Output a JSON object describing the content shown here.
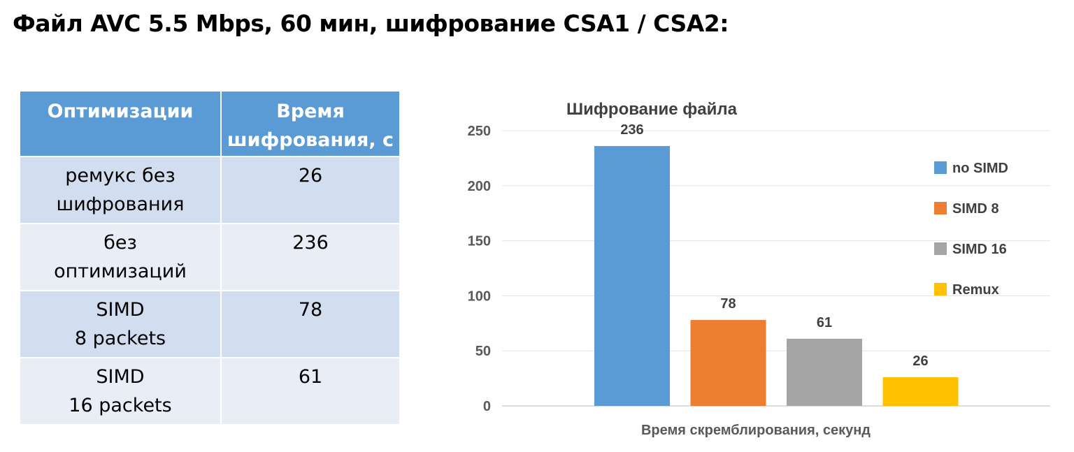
{
  "page": {
    "title": "Файл AVC 5.5 Mbps, 60 мин, шифрование CSA1 / CSA2:"
  },
  "table": {
    "headers": [
      {
        "lines": [
          "Оптимизации"
        ]
      },
      {
        "lines": [
          "Время",
          "шифрования, с"
        ]
      }
    ],
    "rows": [
      {
        "name_lines": [
          "ремукс без",
          "шифрования"
        ],
        "time": "26"
      },
      {
        "name_lines": [
          "без",
          "оптимизаций"
        ],
        "time": "236"
      },
      {
        "name_lines": [
          "SIMD",
          "8 packets"
        ],
        "time": "78"
      },
      {
        "name_lines": [
          "SIMD",
          "16 packets"
        ],
        "time": "61"
      }
    ]
  },
  "chart_data": {
    "type": "bar",
    "title": "Шифрование файла",
    "xlabel": "Время скремблирования, секунд",
    "ylabel": "",
    "ylim": [
      0,
      250
    ],
    "yticks": [
      0,
      50,
      100,
      150,
      200,
      250
    ],
    "grid": true,
    "legend_position": "right",
    "series": [
      {
        "name": "no SIMD",
        "value": 236,
        "color": "#5b9bd5"
      },
      {
        "name": "SIMD 8",
        "value": 78,
        "color": "#ed7d31"
      },
      {
        "name": "SIMD 16",
        "value": 61,
        "color": "#a5a5a5"
      },
      {
        "name": "Remux",
        "value": 26,
        "color": "#ffc000"
      }
    ]
  }
}
